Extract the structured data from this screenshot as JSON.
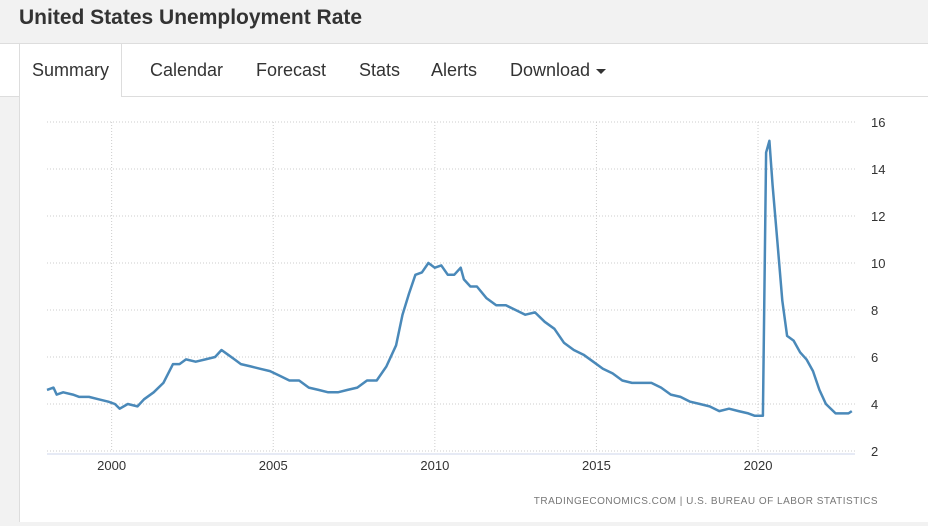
{
  "page": {
    "title": "United States Unemployment Rate"
  },
  "tabs": [
    {
      "label": "Summary",
      "active": true
    },
    {
      "label": "Calendar",
      "active": false
    },
    {
      "label": "Forecast",
      "active": false
    },
    {
      "label": "Stats",
      "active": false
    },
    {
      "label": "Alerts",
      "active": false
    },
    {
      "label": "Download",
      "active": false,
      "dropdown": true
    }
  ],
  "source_text": "TRADINGECONOMICS.COM  |  U.S. BUREAU OF LABOR STATISTICS",
  "colors": {
    "line": "#4a89b9",
    "grid": "#cccccc",
    "text": "#333333"
  },
  "chart_data": {
    "type": "line",
    "title": "",
    "xlabel": "",
    "ylabel": "",
    "xlim": [
      1998.0,
      2023.0
    ],
    "ylim": [
      2,
      16
    ],
    "x_ticks": [
      2000,
      2005,
      2010,
      2015,
      2020
    ],
    "y_ticks": [
      2,
      4,
      6,
      8,
      10,
      12,
      14,
      16
    ],
    "y_axis_position": "right",
    "grid": true,
    "series": [
      {
        "x": [
          1998.0,
          1998.2,
          1998.3,
          1998.5,
          1998.8,
          1999.0,
          1999.3,
          1999.6,
          1999.9,
          2000.1,
          2000.25,
          2000.5,
          2000.8,
          2001.0,
          2001.3,
          2001.6,
          2001.9,
          2002.1,
          2002.3,
          2002.6,
          2002.9,
          2003.2,
          2003.4,
          2003.6,
          2003.8,
          2004.0,
          2004.3,
          2004.6,
          2004.9,
          2005.2,
          2005.5,
          2005.8,
          2006.1,
          2006.4,
          2006.7,
          2007.0,
          2007.3,
          2007.6,
          2007.9,
          2008.2,
          2008.5,
          2008.8,
          2009.0,
          2009.2,
          2009.4,
          2009.6,
          2009.8,
          2010.0,
          2010.2,
          2010.4,
          2010.6,
          2010.8,
          2010.9,
          2011.1,
          2011.3,
          2011.6,
          2011.9,
          2012.2,
          2012.5,
          2012.8,
          2013.1,
          2013.4,
          2013.7,
          2014.0,
          2014.3,
          2014.6,
          2014.9,
          2015.2,
          2015.5,
          2015.8,
          2016.1,
          2016.4,
          2016.7,
          2017.0,
          2017.3,
          2017.6,
          2017.9,
          2018.2,
          2018.5,
          2018.8,
          2019.1,
          2019.4,
          2019.7,
          2019.9,
          2020.1,
          2020.15,
          2020.25,
          2020.35,
          2020.45,
          2020.6,
          2020.75,
          2020.9,
          2021.1,
          2021.3,
          2021.5,
          2021.7,
          2021.9,
          2022.1,
          2022.4,
          2022.6,
          2022.8,
          2022.9
        ],
        "values": [
          4.6,
          4.7,
          4.4,
          4.5,
          4.4,
          4.3,
          4.3,
          4.2,
          4.1,
          4.0,
          3.8,
          4.0,
          3.9,
          4.2,
          4.5,
          4.9,
          5.7,
          5.7,
          5.9,
          5.8,
          5.9,
          6.0,
          6.3,
          6.1,
          5.9,
          5.7,
          5.6,
          5.5,
          5.4,
          5.2,
          5.0,
          5.0,
          4.7,
          4.6,
          4.5,
          4.5,
          4.6,
          4.7,
          5.0,
          5.0,
          5.6,
          6.5,
          7.8,
          8.7,
          9.5,
          9.6,
          10.0,
          9.8,
          9.9,
          9.5,
          9.5,
          9.8,
          9.3,
          9.0,
          9.0,
          8.5,
          8.2,
          8.2,
          8.0,
          7.8,
          7.9,
          7.5,
          7.2,
          6.6,
          6.3,
          6.1,
          5.8,
          5.5,
          5.3,
          5.0,
          4.9,
          4.9,
          4.9,
          4.7,
          4.4,
          4.3,
          4.1,
          4.0,
          3.9,
          3.7,
          3.8,
          3.7,
          3.6,
          3.5,
          3.5,
          3.5,
          14.7,
          15.2,
          13.3,
          10.9,
          8.4,
          6.9,
          6.7,
          6.2,
          5.9,
          5.4,
          4.6,
          4.0,
          3.6,
          3.6,
          3.6,
          3.7
        ]
      }
    ]
  }
}
